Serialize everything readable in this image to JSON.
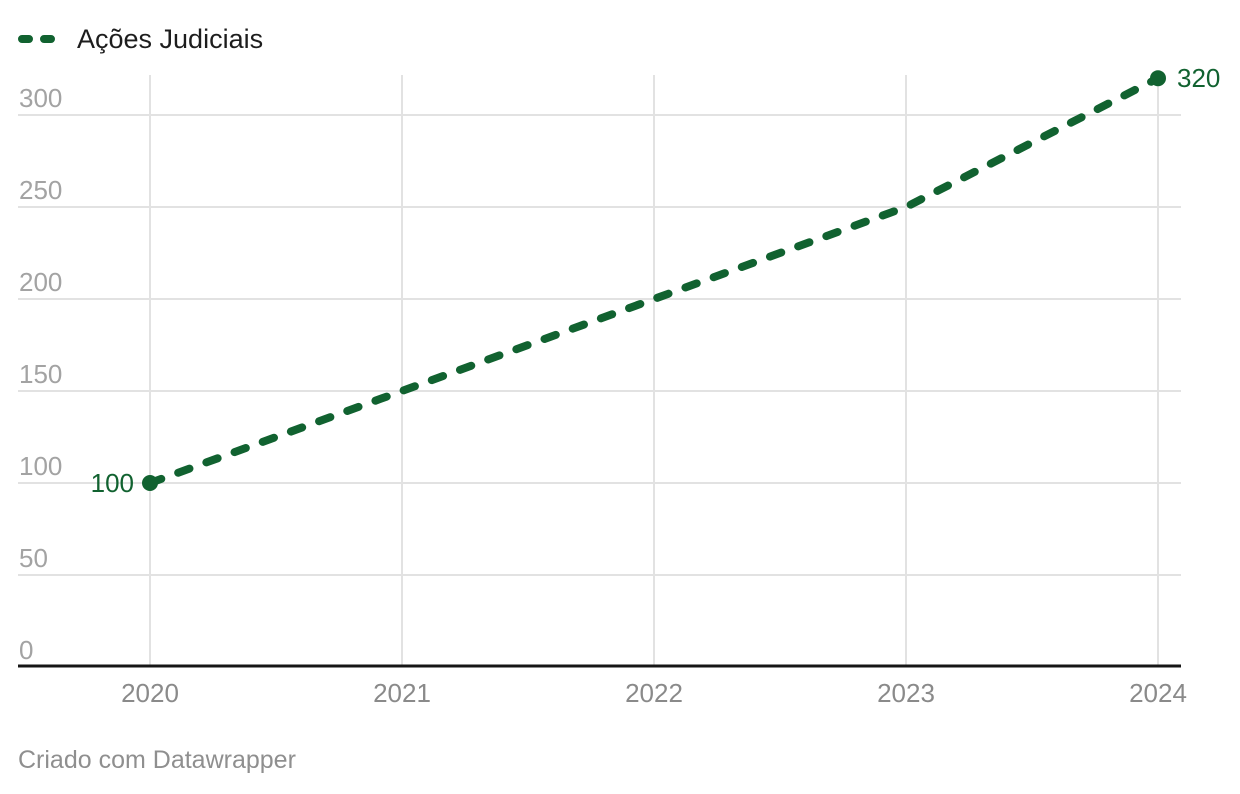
{
  "legend": {
    "series_label": "Ações Judiciais"
  },
  "footer": {
    "credit": "Criado com Datawrapper"
  },
  "colors": {
    "line": "#116230",
    "value_label": "#116230",
    "legend_text": "#1d1d1d",
    "y_tick_label": "#a3a3a3",
    "x_tick_label": "#8a8a8a",
    "gridline": "#e2e2e2",
    "axis_line": "#161616",
    "footer_text": "#8f8f8f",
    "background": "#ffffff"
  },
  "chart_data": {
    "type": "line",
    "title": "",
    "line_style": "dashed",
    "grid": "both",
    "legend_position": "top-left",
    "x": [
      2020,
      2021,
      2022,
      2023,
      2024
    ],
    "x_tick_labels": [
      "2020",
      "2021",
      "2022",
      "2023",
      "2024"
    ],
    "y_ticks": [
      0,
      50,
      100,
      150,
      200,
      250,
      300
    ],
    "y_tick_labels": [
      "0",
      "50",
      "100",
      "150",
      "200",
      "250",
      "300"
    ],
    "ylim": [
      0,
      322
    ],
    "series": [
      {
        "name": "Ações Judiciais",
        "values": [
          100,
          150,
          200,
          250,
          320
        ]
      }
    ],
    "point_labels": [
      {
        "year": 2020,
        "value": 100,
        "text": "100",
        "side": "left"
      },
      {
        "year": 2024,
        "value": 320,
        "text": "320",
        "side": "right"
      }
    ]
  }
}
